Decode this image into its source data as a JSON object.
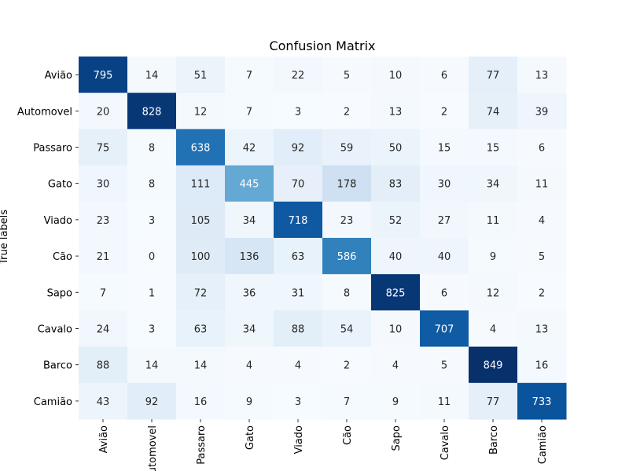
{
  "chart_data": {
    "type": "heatmap",
    "title": "Confusion Matrix",
    "ylabel": "True labels",
    "xlabel": "",
    "row_labels": [
      "Avião",
      "Automovel",
      "Passaro",
      "Gato",
      "Viado",
      "Cão",
      "Sapo",
      "Cavalo",
      "Barco",
      "Camião"
    ],
    "col_labels": [
      "Avião",
      "Automovel",
      "Passaro",
      "Gato",
      "Viado",
      "Cão",
      "Sapo",
      "Cavalo",
      "Barco",
      "Camião"
    ],
    "colormap": "Blues",
    "value_range": [
      0,
      849
    ],
    "matrix": [
      [
        795,
        14,
        51,
        7,
        22,
        5,
        10,
        6,
        77,
        13
      ],
      [
        20,
        828,
        12,
        7,
        3,
        2,
        13,
        2,
        74,
        39
      ],
      [
        75,
        8,
        638,
        42,
        92,
        59,
        50,
        15,
        15,
        6
      ],
      [
        30,
        8,
        111,
        445,
        70,
        178,
        83,
        30,
        34,
        11
      ],
      [
        23,
        3,
        105,
        34,
        718,
        23,
        52,
        27,
        11,
        4
      ],
      [
        21,
        0,
        100,
        136,
        63,
        586,
        40,
        40,
        9,
        5
      ],
      [
        7,
        1,
        72,
        36,
        31,
        8,
        825,
        6,
        12,
        2
      ],
      [
        24,
        3,
        63,
        34,
        88,
        54,
        10,
        707,
        4,
        13
      ],
      [
        88,
        14,
        14,
        4,
        4,
        2,
        4,
        5,
        849,
        16
      ],
      [
        43,
        92,
        16,
        9,
        3,
        7,
        9,
        11,
        77,
        733
      ]
    ]
  }
}
